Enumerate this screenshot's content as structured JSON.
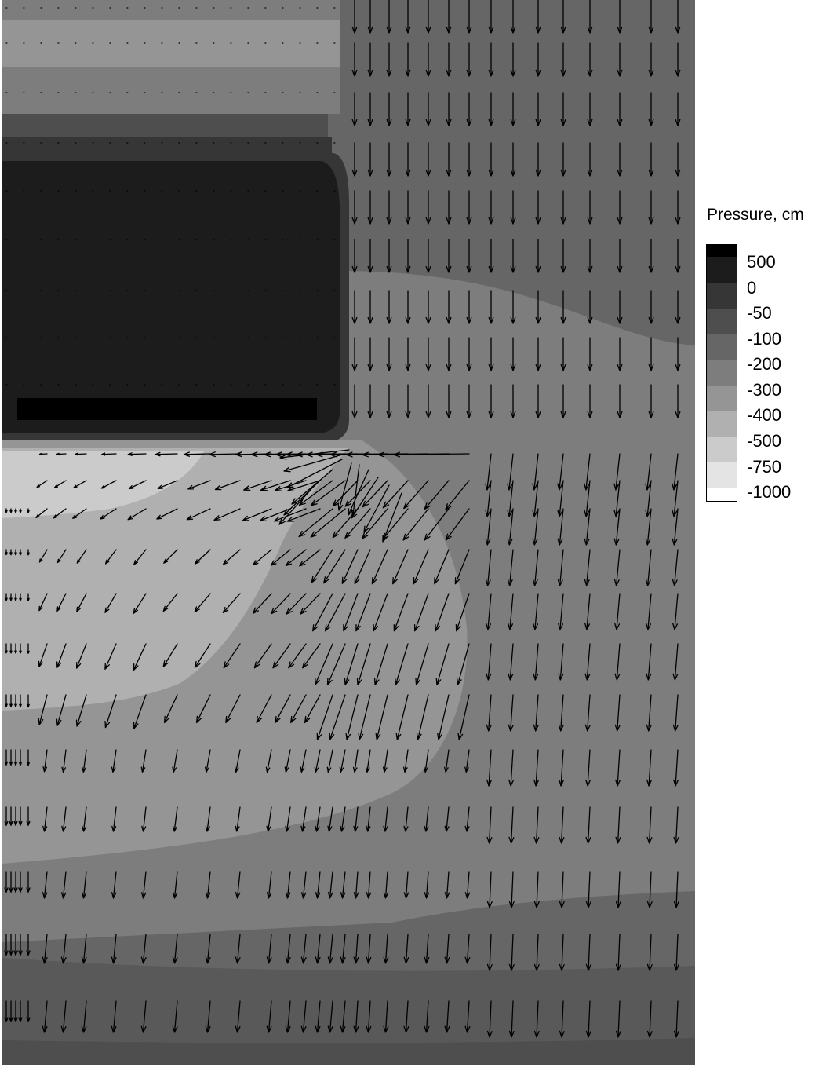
{
  "chart_data": {
    "type": "heatmap",
    "overlay": "vector-field",
    "title": "",
    "xlabel": "",
    "ylabel": "",
    "legend": {
      "title": "Pressure, cm",
      "placement": "right",
      "levels": [
        {
          "label": "500",
          "color": "#000000"
        },
        {
          "label": "0",
          "color": "#1c1c1c"
        },
        {
          "label": "-50",
          "color": "#363636"
        },
        {
          "label": "-100",
          "color": "#4e4e4e"
        },
        {
          "label": "-200",
          "color": "#666666"
        },
        {
          "label": "-300",
          "color": "#7d7d7d"
        },
        {
          "label": "-400",
          "color": "#959595"
        },
        {
          "label": "-500",
          "color": "#b0b0b0"
        },
        {
          "label": "-750",
          "color": "#cbcbcb"
        },
        {
          "label": "-1000",
          "color": "#e4e4e4"
        },
        {
          "label": "",
          "color": "#ffffff"
        }
      ]
    },
    "grid": false,
    "axes_visible": false
  }
}
